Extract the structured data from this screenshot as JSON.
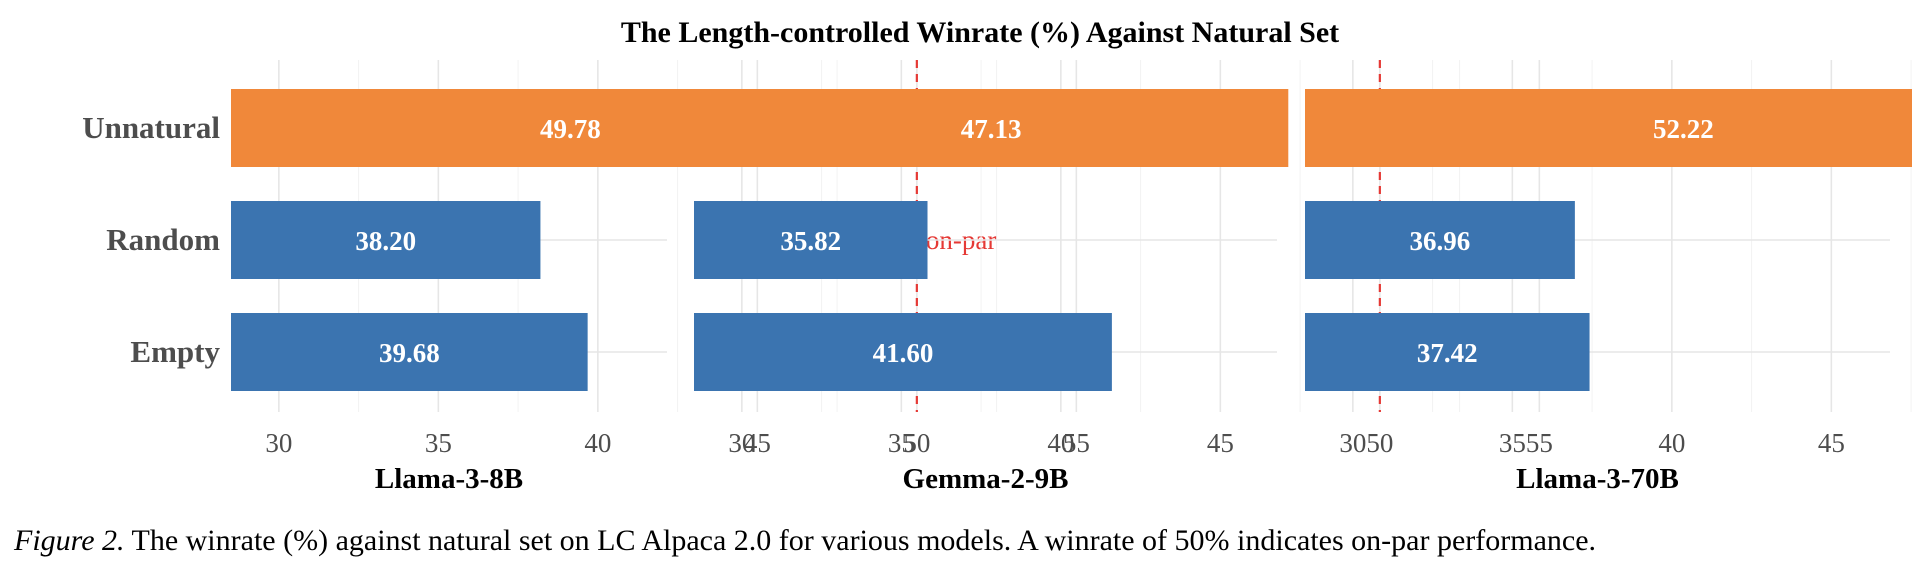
{
  "chart_data": {
    "type": "bar",
    "orientation": "horizontal",
    "title": "The Length-controlled Winrate (%) Against Natural Set",
    "categories": [
      "Unnatural",
      "Random",
      "Empty"
    ],
    "xlim": [
      28.5,
      56.5
    ],
    "xticks": [
      "30",
      "35",
      "40",
      "45",
      "50",
      "55"
    ],
    "reference_line": {
      "value": 50,
      "label": "on-par",
      "color": "#e53935"
    },
    "bar_colors": {
      "Unnatural": "#f0883a",
      "Random": "#3b74b0",
      "Empty": "#3b74b0"
    },
    "grid": true,
    "panels": [
      {
        "name": "Llama-3-8B",
        "values": [
          49.78,
          38.2,
          39.68
        ],
        "labels": [
          "49.78",
          "38.20",
          "39.68"
        ]
      },
      {
        "name": "Gemma-2-9B",
        "values": [
          47.13,
          35.82,
          41.6
        ],
        "labels": [
          "47.13",
          "35.82",
          "41.60"
        ]
      },
      {
        "name": "Llama-3-70B",
        "values": [
          52.22,
          36.96,
          37.42
        ],
        "labels": [
          "52.22",
          "36.96",
          "37.42"
        ]
      }
    ]
  },
  "caption": {
    "figure_number": "Figure 2.",
    "text": " The winrate (%) against natural set on LC Alpaca 2.0 for various models. A winrate of 50% indicates on-par performance."
  }
}
